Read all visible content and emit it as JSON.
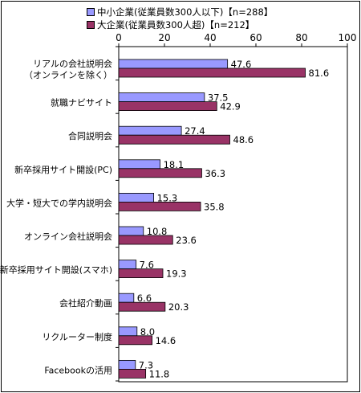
{
  "chart_data": {
    "type": "bar",
    "orientation": "horizontal",
    "categories": [
      [
        "リアルの会社説明会",
        "（オンラインを除く）"
      ],
      [
        "就職ナビサイト"
      ],
      [
        "合同説明会"
      ],
      [
        "新卒採用サイト開設(PC)"
      ],
      [
        "大学・短大での学内説明会"
      ],
      [
        "オンライン会社説明会"
      ],
      [
        "新卒採用サイト開設(スマホ)"
      ],
      [
        "会社紹介動画"
      ],
      [
        "リクルーター制度"
      ],
      [
        "Facebookの活用"
      ]
    ],
    "series": [
      {
        "name": "中小企業(従業員数300人以下)【n=288】",
        "color": "#9999ff",
        "values": [
          47.6,
          37.5,
          27.4,
          18.1,
          15.3,
          10.8,
          7.6,
          6.6,
          8.0,
          7.3
        ],
        "labels": [
          "47.6",
          "37.5",
          "27.4",
          "18.1",
          "15.3",
          "10.8",
          "7.6",
          "6.6",
          "8.0",
          "7.3"
        ]
      },
      {
        "name": "大企業(従業員数300人超)【n=212】",
        "color": "#993366",
        "values": [
          81.6,
          42.9,
          48.6,
          36.3,
          35.8,
          23.6,
          19.3,
          20.3,
          14.6,
          11.8
        ],
        "labels": [
          "81.6",
          "42.9",
          "48.6",
          "36.3",
          "35.8",
          "23.6",
          "19.3",
          "20.3",
          "14.6",
          "11.8"
        ]
      }
    ],
    "xlim": [
      0,
      100
    ],
    "xticks": [
      "0",
      "20",
      "40",
      "60",
      "80",
      "100"
    ],
    "axis_position": "top",
    "grid": false,
    "legend_position": "top"
  }
}
